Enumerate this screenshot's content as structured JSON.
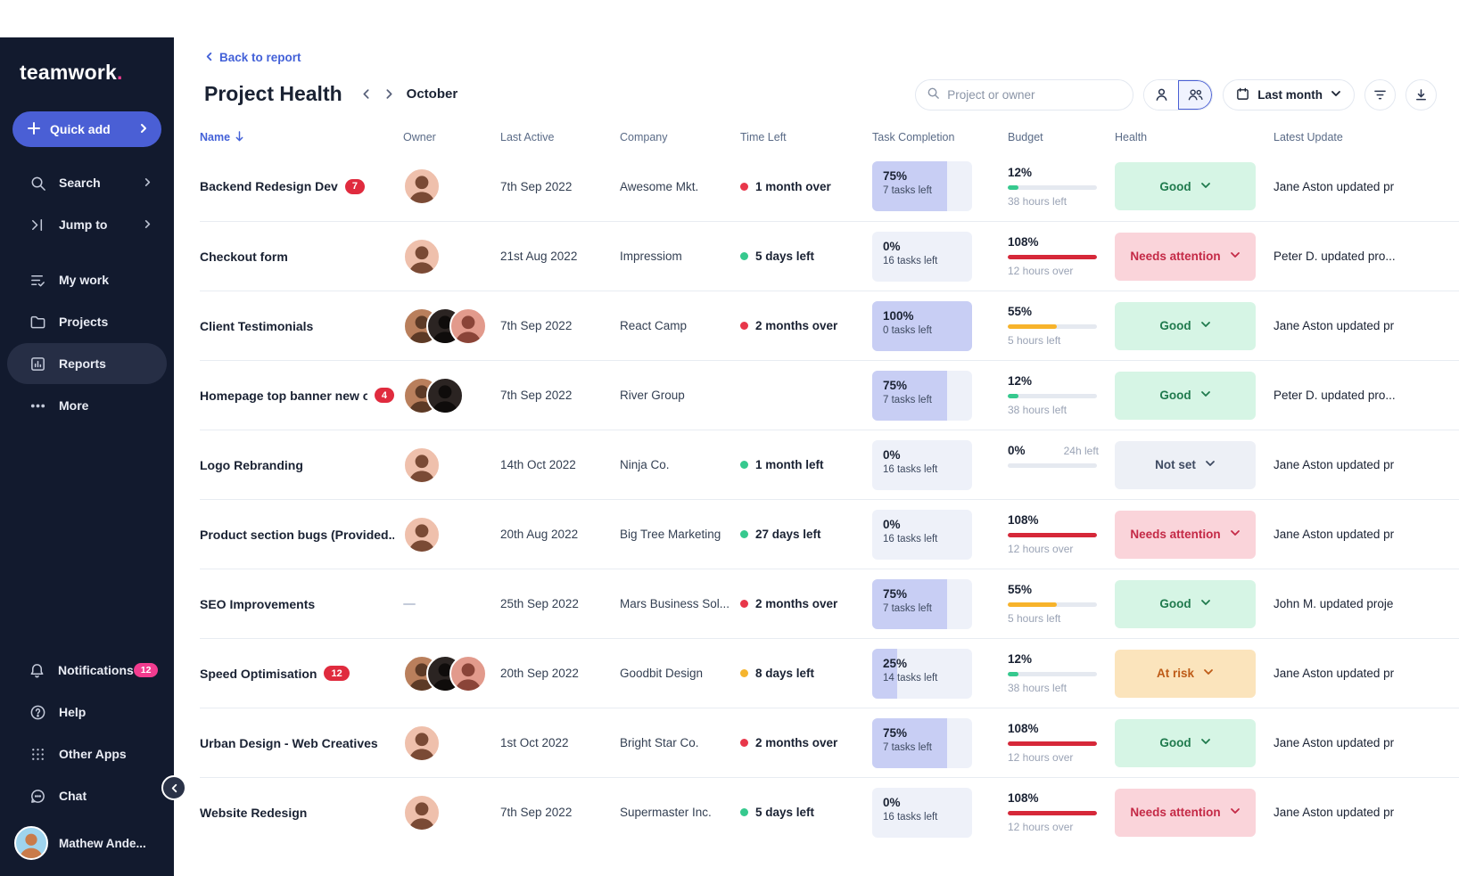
{
  "app": {
    "logo_text": "teamwork",
    "logo_dot": "."
  },
  "sidebar": {
    "quick_add_label": "Quick add",
    "nav_top": [
      {
        "label": "Search",
        "icon": "search-icon",
        "chevron": true
      },
      {
        "label": "Jump to",
        "icon": "jump-to-icon",
        "chevron": true
      }
    ],
    "nav_main": [
      {
        "label": "My work",
        "icon": "my-work-icon",
        "active": false
      },
      {
        "label": "Projects",
        "icon": "projects-folder-icon",
        "active": false
      },
      {
        "label": "Reports",
        "icon": "reports-chart-icon",
        "active": true
      },
      {
        "label": "More",
        "icon": "more-dots-icon",
        "active": false
      }
    ],
    "nav_bottom": [
      {
        "label": "Notifications",
        "icon": "bell-icon",
        "badge": "12"
      },
      {
        "label": "Help",
        "icon": "help-icon"
      },
      {
        "label": "Other Apps",
        "icon": "apps-grid-icon"
      },
      {
        "label": "Chat",
        "icon": "chat-icon"
      }
    ],
    "user": {
      "name": "Mathew Ande...",
      "avatar": {
        "bg": "#9FD4EE",
        "fg": "#C97B4A"
      }
    }
  },
  "header": {
    "back_link": "Back to report",
    "title": "Project Health",
    "period": "October",
    "search_placeholder": "Project or owner",
    "date_filter_label": "Last month"
  },
  "table": {
    "columns": [
      "Name",
      "Owner",
      "Last Active",
      "Company",
      "Time Left",
      "Task Completion",
      "Budget",
      "Health",
      "Latest Update"
    ],
    "sort": {
      "column": "Name",
      "direction": "desc"
    },
    "rows": [
      {
        "name": "Backend Redesign Dev",
        "badge": "7",
        "owners": [
          {
            "bg": "#EFC0AC",
            "fg": "#7A4A35"
          }
        ],
        "last_active": "7th Sep 2022",
        "company": "Awesome Mkt.",
        "time_left": {
          "status": "red",
          "label": "1 month over"
        },
        "completion": {
          "pct": 75,
          "label": "75%",
          "sub": "7 tasks left"
        },
        "budget": {
          "label": "12%",
          "fill": 12,
          "color": "green",
          "sub": "38 hours left",
          "inline": ""
        },
        "health": {
          "label": "Good",
          "variant": "good"
        },
        "update": "Jane Aston updated pr"
      },
      {
        "name": "Checkout form",
        "badge": "",
        "owners": [
          {
            "bg": "#EFC0AC",
            "fg": "#7A4A35"
          }
        ],
        "last_active": "21st Aug 2022",
        "company": "Impressiom",
        "time_left": {
          "status": "green",
          "label": "5 days left"
        },
        "completion": {
          "pct": 0,
          "label": "0%",
          "sub": "16 tasks left"
        },
        "budget": {
          "label": "108%",
          "fill": 100,
          "color": "red",
          "sub": "12 hours over",
          "inline": ""
        },
        "health": {
          "label": "Needs attention",
          "variant": "attention"
        },
        "update": "Peter D. updated pro..."
      },
      {
        "name": "Client Testimonials",
        "badge": "",
        "owners": [
          {
            "bg": "#B97F5C",
            "fg": "#5C3A26"
          },
          {
            "bg": "#2B2422",
            "fg": "#0F0C0B"
          },
          {
            "bg": "#E29A8C",
            "fg": "#8A4438"
          }
        ],
        "last_active": "7th Sep 2022",
        "company": "React Camp",
        "time_left": {
          "status": "red",
          "label": "2 months over"
        },
        "completion": {
          "pct": 100,
          "label": "100%",
          "sub": "0 tasks left"
        },
        "budget": {
          "label": "55%",
          "fill": 55,
          "color": "yellow",
          "sub": "5 hours left",
          "inline": ""
        },
        "health": {
          "label": "Good",
          "variant": "good"
        },
        "update": "Jane Aston updated pr"
      },
      {
        "name": "Homepage top banner new o...",
        "badge": "4",
        "owners": [
          {
            "bg": "#B97F5C",
            "fg": "#5C3A26"
          },
          {
            "bg": "#2B2422",
            "fg": "#0F0C0B"
          }
        ],
        "last_active": "7th Sep 2022",
        "company": "River Group",
        "time_left": null,
        "completion": {
          "pct": 75,
          "label": "75%",
          "sub": "7 tasks left"
        },
        "budget": {
          "label": "12%",
          "fill": 12,
          "color": "green",
          "sub": "38 hours left",
          "inline": ""
        },
        "health": {
          "label": "Good",
          "variant": "good"
        },
        "update": "Peter D. updated pro..."
      },
      {
        "name": "Logo Rebranding",
        "badge": "",
        "owners": [
          {
            "bg": "#EFC0AC",
            "fg": "#7A4A35"
          }
        ],
        "last_active": "14th Oct 2022",
        "company": "Ninja Co.",
        "time_left": {
          "status": "green",
          "label": "1 month left"
        },
        "completion": {
          "pct": 0,
          "label": "0%",
          "sub": "16 tasks left"
        },
        "budget": {
          "label": "0%",
          "fill": 0,
          "color": "green",
          "sub": "",
          "inline": "24h left"
        },
        "health": {
          "label": "Not set",
          "variant": "notset"
        },
        "update": "Jane Aston updated pr"
      },
      {
        "name": "Product section bugs (Provided...",
        "badge": "",
        "owners": [
          {
            "bg": "#EFC0AC",
            "fg": "#7A4A35"
          }
        ],
        "last_active": "20th Aug 2022",
        "company": "Big Tree Marketing",
        "time_left": {
          "status": "green",
          "label": "27 days left"
        },
        "completion": {
          "pct": 0,
          "label": "0%",
          "sub": "16 tasks left"
        },
        "budget": {
          "label": "108%",
          "fill": 100,
          "color": "red",
          "sub": "12 hours over",
          "inline": ""
        },
        "health": {
          "label": "Needs attention",
          "variant": "attention"
        },
        "update": "Jane Aston updated pr"
      },
      {
        "name": "SEO Improvements",
        "badge": "",
        "owners": [],
        "last_active": "25th Sep 2022",
        "company": "Mars Business Sol...",
        "time_left": {
          "status": "red",
          "label": "2 months over"
        },
        "completion": {
          "pct": 75,
          "label": "75%",
          "sub": "7 tasks left"
        },
        "budget": {
          "label": "55%",
          "fill": 55,
          "color": "yellow",
          "sub": "5 hours left",
          "inline": ""
        },
        "health": {
          "label": "Good",
          "variant": "good"
        },
        "update": "John M. updated proje"
      },
      {
        "name": "Speed Optimisation",
        "badge": "12",
        "owners": [
          {
            "bg": "#B97F5C",
            "fg": "#5C3A26"
          },
          {
            "bg": "#2B2422",
            "fg": "#0F0C0B"
          },
          {
            "bg": "#E29A8C",
            "fg": "#8A4438"
          }
        ],
        "last_active": "20th Sep 2022",
        "company": "Goodbit Design",
        "time_left": {
          "status": "yellow",
          "label": "8 days left"
        },
        "completion": {
          "pct": 25,
          "label": "25%",
          "sub": "14 tasks left"
        },
        "budget": {
          "label": "12%",
          "fill": 12,
          "color": "green",
          "sub": "38 hours left",
          "inline": ""
        },
        "health": {
          "label": "At risk",
          "variant": "atrisk"
        },
        "update": "Jane Aston updated pr"
      },
      {
        "name": "Urban Design - Web Creatives",
        "badge": "",
        "owners": [
          {
            "bg": "#EFC0AC",
            "fg": "#7A4A35"
          }
        ],
        "last_active": "1st Oct 2022",
        "company": "Bright Star Co.",
        "time_left": {
          "status": "red",
          "label": "2 months over"
        },
        "completion": {
          "pct": 75,
          "label": "75%",
          "sub": "7 tasks left"
        },
        "budget": {
          "label": "108%",
          "fill": 100,
          "color": "red",
          "sub": "12 hours over",
          "inline": ""
        },
        "health": {
          "label": "Good",
          "variant": "good"
        },
        "update": "Jane Aston updated pr"
      },
      {
        "name": "Website Redesign",
        "badge": "",
        "owners": [
          {
            "bg": "#EFC0AC",
            "fg": "#7A4A35"
          }
        ],
        "last_active": "7th Sep 2022",
        "company": "Supermaster Inc.",
        "time_left": {
          "status": "green",
          "label": "5 days left"
        },
        "completion": {
          "pct": 0,
          "label": "0%",
          "sub": "16 tasks left"
        },
        "budget": {
          "label": "108%",
          "fill": 100,
          "color": "red",
          "sub": "12 hours over",
          "inline": ""
        },
        "health": {
          "label": "Needs attention",
          "variant": "attention"
        },
        "update": "Jane Aston updated pr"
      }
    ]
  },
  "colors": {
    "sidebar_bg": "#121A2E",
    "accent_blue": "#4A5FD5",
    "link_blue": "#4361D8",
    "brand_pink": "#F23C8F",
    "badge_red": "#E02B3E",
    "dot": {
      "red": "#E8374A",
      "green": "#36C98E",
      "yellow": "#F5B52E"
    },
    "budget": {
      "green": "#36C98E",
      "yellow": "#F7B32B",
      "red": "#D62839"
    },
    "completion_fill": "#C8CEF4",
    "completion_bg": "#EEF1F9",
    "health": {
      "good_bg": "#D6F5E5",
      "good_text": "#1F7A4D",
      "attention_bg": "#FAD4DA",
      "attention_text": "#C42946",
      "notset_bg": "#EDF0F6",
      "notset_text": "#3E4A61",
      "atrisk_bg": "#FBE4BC",
      "atrisk_text": "#BE5B17"
    }
  }
}
